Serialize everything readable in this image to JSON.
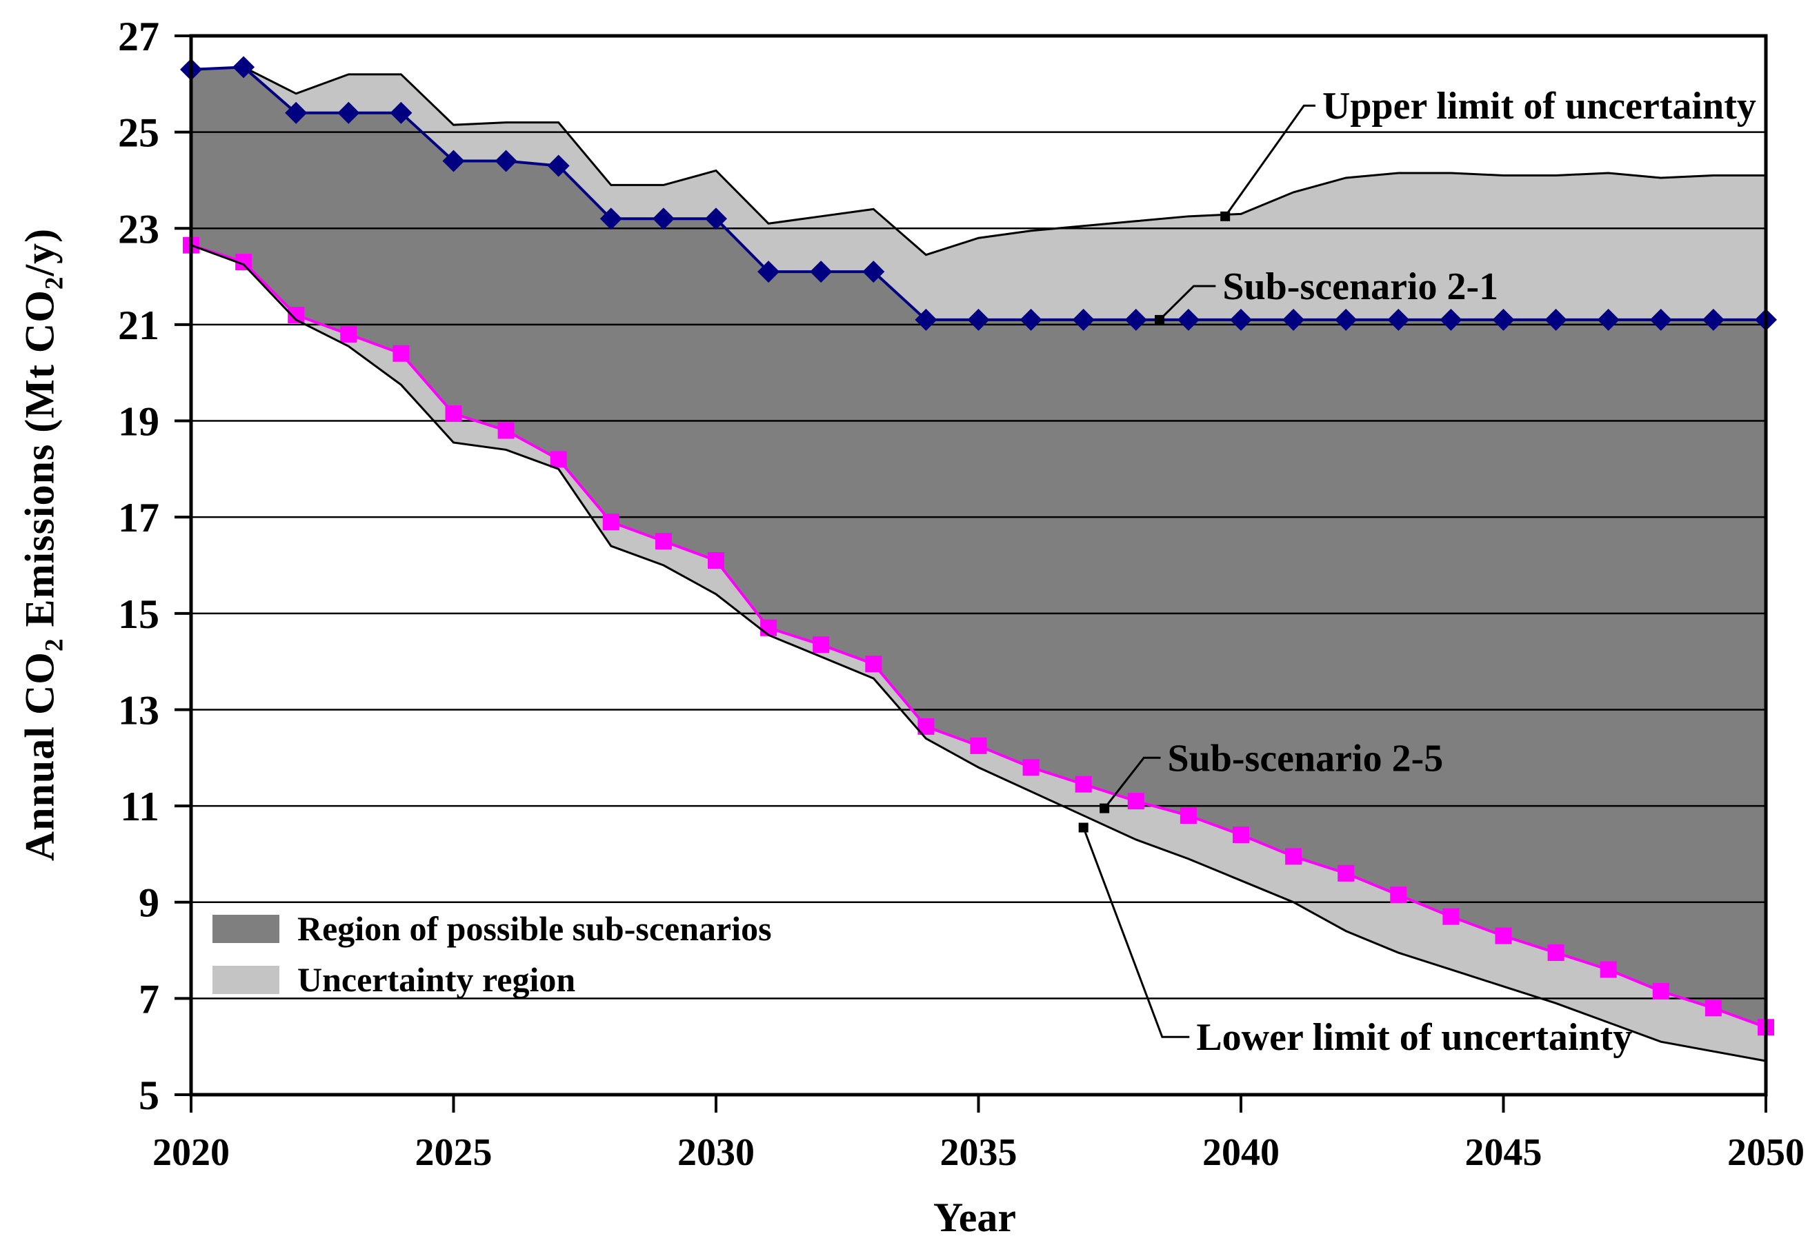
{
  "chart_data": {
    "type": "area",
    "xlabel": "Year",
    "ylabel": "Annual CO2 Emissions (Mt CO2/y)",
    "ylabel_parts": [
      {
        "t": "Annual CO"
      },
      {
        "t": "2",
        "sub": true
      },
      {
        "t": " Emissions (Mt CO"
      },
      {
        "t": "2",
        "sub": true
      },
      {
        "t": "/y)"
      }
    ],
    "xlim": [
      2020,
      2050
    ],
    "ylim": [
      5,
      27
    ],
    "xtick_values": [
      2020,
      2025,
      2030,
      2035,
      2040,
      2045,
      2050
    ],
    "ytick_values": [
      27,
      25,
      23,
      21,
      19,
      17,
      15,
      13,
      11,
      9,
      7,
      5
    ],
    "grid": "horizontal",
    "legend_position": "inside-lower-left",
    "x": [
      2020,
      2021,
      2022,
      2023,
      2024,
      2025,
      2026,
      2027,
      2028,
      2029,
      2030,
      2031,
      2032,
      2033,
      2034,
      2035,
      2036,
      2037,
      2038,
      2039,
      2040,
      2041,
      2042,
      2043,
      2044,
      2045,
      2046,
      2047,
      2048,
      2049,
      2050
    ],
    "series": [
      {
        "name": "Upper limit of uncertainty",
        "color": "#000000",
        "line_width": 3,
        "marker": "none",
        "values": [
          26.3,
          26.35,
          25.8,
          26.2,
          26.2,
          25.15,
          25.2,
          25.2,
          23.9,
          23.9,
          24.2,
          23.1,
          23.25,
          23.4,
          22.45,
          22.8,
          22.95,
          23.05,
          23.15,
          23.25,
          23.3,
          23.75,
          24.05,
          24.15,
          24.15,
          24.1,
          24.1,
          24.15,
          24.05,
          24.1,
          24.1
        ]
      },
      {
        "name": "Sub-scenario 2-1",
        "color": "#000080",
        "line_width": 4,
        "marker": "diamond",
        "values": [
          26.3,
          26.35,
          25.4,
          25.4,
          25.4,
          24.4,
          24.4,
          24.3,
          23.2,
          23.2,
          23.2,
          22.1,
          22.1,
          22.1,
          21.1,
          21.1,
          21.1,
          21.1,
          21.1,
          21.1,
          21.1,
          21.1,
          21.1,
          21.1,
          21.1,
          21.1,
          21.1,
          21.1,
          21.1,
          21.1,
          21.1
        ]
      },
      {
        "name": "Sub-scenario 2-5",
        "color": "#FF00FF",
        "line_width": 4,
        "marker": "square",
        "values": [
          22.65,
          22.3,
          21.2,
          20.8,
          20.4,
          19.15,
          18.8,
          18.2,
          16.9,
          16.5,
          16.1,
          14.7,
          14.35,
          13.95,
          12.65,
          12.25,
          11.8,
          11.45,
          11.1,
          10.8,
          10.4,
          9.95,
          9.6,
          9.15,
          8.7,
          8.3,
          7.95,
          7.6,
          7.15,
          6.8,
          6.4
        ]
      },
      {
        "name": "Lower limit of uncertainty",
        "color": "#000000",
        "line_width": 3,
        "marker": "none",
        "values": [
          22.65,
          22.25,
          21.1,
          20.55,
          19.75,
          18.55,
          18.4,
          18.0,
          16.4,
          16.0,
          15.4,
          14.55,
          14.1,
          13.65,
          12.4,
          11.8,
          11.3,
          10.8,
          10.3,
          9.9,
          9.45,
          9.0,
          8.4,
          7.95,
          7.6,
          7.25,
          6.9,
          6.5,
          6.1,
          5.9,
          5.7
        ]
      }
    ],
    "regions": [
      {
        "name": "Uncertainty region",
        "between": [
          "Upper limit of uncertainty",
          "Lower limit of uncertainty"
        ],
        "color": "#C4C4C4"
      },
      {
        "name": "Region of possible sub-scenarios",
        "between": [
          "Sub-scenario 2-1",
          "Sub-scenario 2-5"
        ],
        "color": "#7F7F7F"
      }
    ],
    "legend": {
      "items": [
        {
          "label": "Region of possible sub-scenarios",
          "color": "#7F7F7F"
        },
        {
          "label": "Uncertainty region",
          "color": "#C4C4C4"
        }
      ]
    },
    "annotations": [
      {
        "text": "Upper limit of uncertainty",
        "anchor": [
          2039.7,
          23.25
        ],
        "elbow": [
          2041.2,
          25.55
        ],
        "text_at": [
          2041.55,
          25.55
        ]
      },
      {
        "text": "Sub-scenario 2-1",
        "anchor": [
          2038.45,
          21.1
        ],
        "elbow": [
          2039.1,
          21.8
        ],
        "text_at": [
          2039.65,
          21.8
        ]
      },
      {
        "text": "Sub-scenario 2-5",
        "anchor": [
          2037.4,
          10.95
        ],
        "elbow": [
          2038.15,
          12.0
        ],
        "text_at": [
          2038.6,
          12.0
        ]
      },
      {
        "text": "Lower limit of uncertainty",
        "anchor": [
          2037.0,
          10.55
        ],
        "elbow": [
          2038.5,
          6.2
        ],
        "text_at": [
          2039.15,
          6.2
        ]
      }
    ],
    "colors": {
      "axis": "#000000",
      "grid": "#000000",
      "background": "#FFFFFF"
    }
  }
}
